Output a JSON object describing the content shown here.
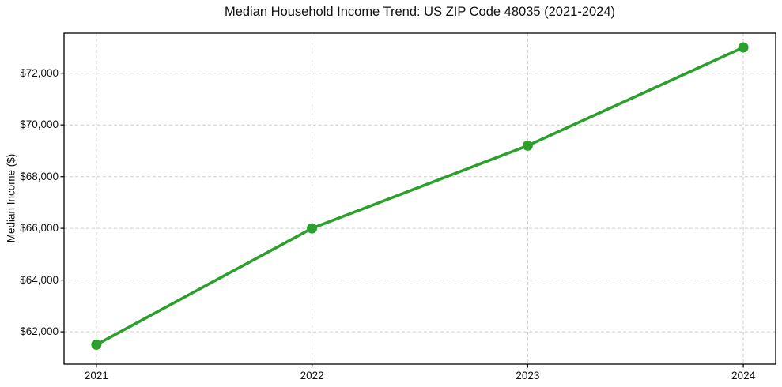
{
  "chart_data": {
    "type": "line",
    "title": "Median Household Income Trend: US ZIP Code 48035 (2021-2024)",
    "xlabel": "",
    "ylabel": "Median Income ($)",
    "x": [
      2021,
      2022,
      2023,
      2024
    ],
    "series": [
      {
        "name": "Median Household Income",
        "values": [
          61500,
          66000,
          69200,
          73000
        ]
      }
    ],
    "xticks": [
      2021,
      2022,
      2023,
      2024
    ],
    "xtick_labels": [
      "2021",
      "2022",
      "2023",
      "2024"
    ],
    "yticks": [
      62000,
      64000,
      66000,
      68000,
      70000,
      72000
    ],
    "ytick_labels": [
      "$62,000",
      "$64,000",
      "$66,000",
      "$68,000",
      "$70,000",
      "$72,000"
    ],
    "xlim": [
      2020.85,
      2024.15
    ],
    "ylim": [
      60750,
      73550
    ],
    "grid": true,
    "legend_position": "none",
    "line_color": "#2ca02c",
    "marker_color": "#2ca02c",
    "grid_color": "#cdcdcd",
    "spine_color": "#000000",
    "text_color": "#111111",
    "background_color": "#ffffff",
    "marker": "o",
    "marker_radius": 6.5,
    "line_width": 3.6
  }
}
